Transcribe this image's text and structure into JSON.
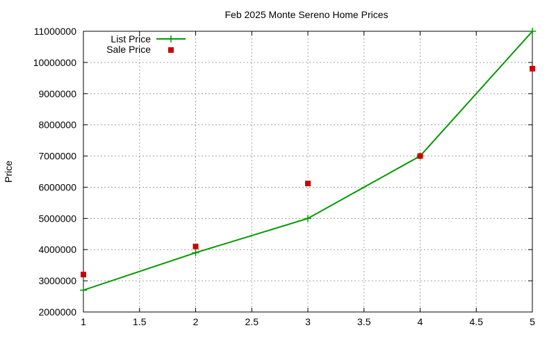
{
  "chart_data": {
    "type": "line",
    "title": "Feb 2025 Monte Sereno Home Prices",
    "xlabel": "",
    "ylabel": "Price",
    "xlim": [
      1,
      5
    ],
    "ylim": [
      2000000,
      11000000
    ],
    "x_ticks": [
      "1",
      "1.5",
      "2",
      "2.5",
      "3",
      "3.5",
      "4",
      "4.5",
      "5"
    ],
    "y_ticks": [
      "2000000",
      "3000000",
      "4000000",
      "5000000",
      "6000000",
      "7000000",
      "8000000",
      "9000000",
      "10000000",
      "11000000"
    ],
    "grid": true,
    "legend_position": "top-left",
    "series": [
      {
        "name": "List Price",
        "style": "line-with-plus-markers",
        "color": "#009900",
        "points": [
          {
            "x": 1,
            "y": 2700000
          },
          {
            "x": 2,
            "y": 3900000
          },
          {
            "x": 3,
            "y": 5000000
          },
          {
            "x": 4,
            "y": 7000000
          },
          {
            "x": 5,
            "y": 11000000
          }
        ]
      },
      {
        "name": "Sale Price",
        "style": "square-markers",
        "color": "#cc0000",
        "points": [
          {
            "x": 1,
            "y": 3200000
          },
          {
            "x": 2,
            "y": 4100000
          },
          {
            "x": 3,
            "y": 6120000
          },
          {
            "x": 4,
            "y": 7000000
          },
          {
            "x": 5,
            "y": 9800000
          }
        ]
      }
    ]
  }
}
